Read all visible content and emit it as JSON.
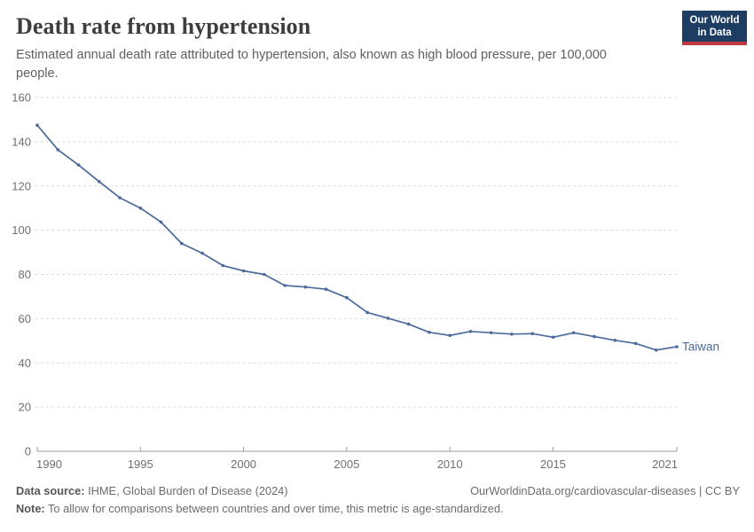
{
  "header": {
    "title": "Death rate from hypertension",
    "subtitle": "Estimated annual death rate attributed to hypertension, also known as high blood pressure, per 100,000 people.",
    "logo": {
      "line1": "Our World",
      "line2": "in Data"
    }
  },
  "chart_data": {
    "type": "line",
    "title": "Death rate from hypertension",
    "xlabel": "",
    "ylabel": "",
    "ylim": [
      0,
      160
    ],
    "yticks": [
      0,
      20,
      40,
      60,
      80,
      100,
      120,
      140,
      160
    ],
    "xticks": [
      1990,
      1995,
      2000,
      2005,
      2010,
      2015,
      2021
    ],
    "grid": "horizontal-dashed",
    "legend_position": "end-of-line-label",
    "x": [
      1990,
      1991,
      1992,
      1993,
      1994,
      1995,
      1996,
      1997,
      1998,
      1999,
      2000,
      2001,
      2002,
      2003,
      2004,
      2005,
      2006,
      2007,
      2008,
      2009,
      2010,
      2011,
      2012,
      2013,
      2014,
      2015,
      2016,
      2017,
      2018,
      2019,
      2020,
      2021
    ],
    "series": [
      {
        "name": "Taiwan",
        "color": "#4C6A9C",
        "values": [
          147.5,
          136.4,
          129.5,
          122.0,
          114.7,
          110.0,
          103.7,
          94.0,
          89.6,
          84.0,
          81.6,
          80.0,
          75.0,
          74.3,
          73.3,
          69.5,
          62.8,
          60.2,
          57.5,
          53.8,
          52.4,
          54.2,
          53.6,
          53.0,
          53.2,
          51.6,
          53.6,
          51.9,
          50.2,
          48.8,
          45.8,
          47.3
        ]
      }
    ]
  },
  "footer": {
    "data_source_label": "Data source:",
    "data_source_text": " IHME, Global Burden of Disease (2024)",
    "link": "OurWorldinData.org/cardiovascular-diseases | CC BY",
    "note_label": "Note:",
    "note_text": " To allow for comparisons between countries and over time, this metric is age-standardized."
  },
  "colors": {
    "line_blue": "#4C6A9C",
    "logo_navy": "#1d3d63",
    "logo_red": "#c2383f",
    "gridline": "#dcdcdc",
    "axis": "#9c9c9c"
  }
}
